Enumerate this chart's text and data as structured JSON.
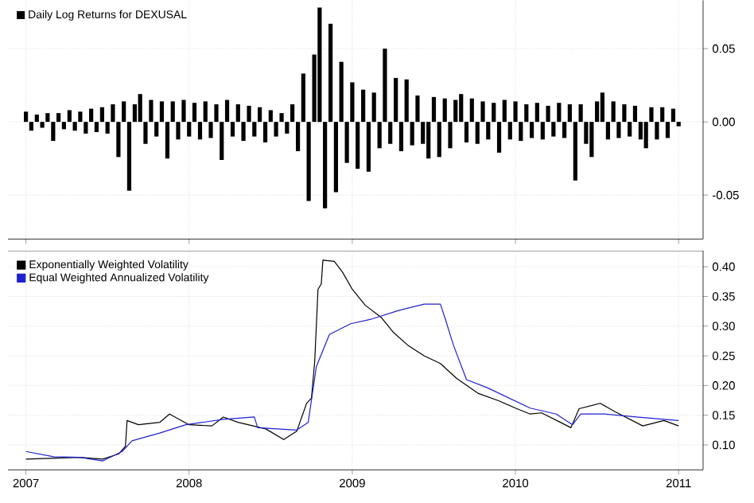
{
  "chart_data": [
    {
      "type": "bar",
      "xlim": [
        2006.89,
        2011.15
      ],
      "ylim": [
        -0.08,
        0.083
      ],
      "xticks": [
        2007,
        2008,
        2009,
        2010,
        2011
      ],
      "yticks": [
        {
          "value": -0.05,
          "label": "-0.05"
        },
        {
          "value": 0,
          "label": "0.00"
        },
        {
          "value": 0.05,
          "label": "0.05"
        }
      ],
      "tick_labels": "y",
      "grid": true,
      "legend": "top left",
      "series": [
        {
          "name": "Daily Log Returns for DEXUSAL",
          "color": "#000000",
          "x": [
            2007.0,
            2007.033,
            2007.067,
            2007.1,
            2007.133,
            2007.167,
            2007.2,
            2007.233,
            2007.267,
            2007.3,
            2007.333,
            2007.367,
            2007.4,
            2007.433,
            2007.467,
            2007.5,
            2007.533,
            2007.567,
            2007.6,
            2007.633,
            2007.667,
            2007.7,
            2007.733,
            2007.767,
            2007.8,
            2007.833,
            2007.867,
            2007.9,
            2007.933,
            2007.967,
            2008.0,
            2008.033,
            2008.067,
            2008.1,
            2008.133,
            2008.167,
            2008.2,
            2008.233,
            2008.267,
            2008.3,
            2008.333,
            2008.367,
            2008.4,
            2008.433,
            2008.467,
            2008.5,
            2008.533,
            2008.567,
            2008.6,
            2008.633,
            2008.667,
            2008.7,
            2008.733,
            2008.767,
            2008.8,
            2008.833,
            2008.867,
            2008.9,
            2008.933,
            2008.967,
            2009.0,
            2009.033,
            2009.067,
            2009.1,
            2009.133,
            2009.167,
            2009.2,
            2009.233,
            2009.267,
            2009.3,
            2009.333,
            2009.367,
            2009.4,
            2009.433,
            2009.467,
            2009.5,
            2009.533,
            2009.567,
            2009.6,
            2009.633,
            2009.667,
            2009.7,
            2009.733,
            2009.767,
            2009.8,
            2009.833,
            2009.867,
            2009.9,
            2009.933,
            2009.967,
            2010.0,
            2010.033,
            2010.067,
            2010.1,
            2010.133,
            2010.167,
            2010.2,
            2010.233,
            2010.267,
            2010.3,
            2010.333,
            2010.367,
            2010.4,
            2010.433,
            2010.467,
            2010.5,
            2010.533,
            2010.567,
            2010.6,
            2010.633,
            2010.667,
            2010.7,
            2010.733,
            2010.767,
            2010.8,
            2010.833,
            2010.867,
            2010.9,
            2010.933,
            2010.967,
            2011.0
          ],
          "values": [
            0.007,
            -0.006,
            0.005,
            -0.004,
            0.006,
            -0.013,
            0.006,
            -0.005,
            0.008,
            -0.006,
            0.007,
            -0.008,
            0.009,
            -0.007,
            0.01,
            -0.008,
            0.012,
            -0.024,
            0.014,
            -0.047,
            0.012,
            0.019,
            -0.015,
            0.015,
            -0.01,
            0.014,
            -0.025,
            0.014,
            -0.012,
            0.015,
            -0.01,
            0.013,
            -0.012,
            0.014,
            -0.011,
            0.012,
            -0.026,
            0.015,
            -0.01,
            0.012,
            -0.013,
            0.011,
            -0.01,
            0.01,
            -0.014,
            0.008,
            -0.01,
            0.006,
            -0.008,
            0.012,
            -0.02,
            0.033,
            -0.054,
            0.046,
            0.078,
            -0.059,
            0.067,
            -0.048,
            0.041,
            -0.028,
            0.027,
            -0.032,
            0.022,
            -0.034,
            0.02,
            -0.018,
            0.05,
            -0.015,
            0.03,
            -0.02,
            0.029,
            -0.016,
            0.018,
            -0.015,
            -0.025,
            0.017,
            -0.024,
            0.016,
            -0.018,
            0.015,
            0.019,
            -0.014,
            0.016,
            -0.015,
            0.014,
            -0.012,
            0.013,
            -0.021,
            0.015,
            -0.012,
            0.014,
            -0.013,
            0.012,
            -0.011,
            0.013,
            -0.012,
            0.011,
            -0.01,
            0.013,
            -0.011,
            0.012,
            -0.04,
            0.012,
            -0.015,
            -0.024,
            0.014,
            0.02,
            -0.012,
            0.014,
            -0.011,
            0.012,
            -0.01,
            0.011,
            -0.012,
            -0.018,
            0.01,
            -0.012,
            0.01,
            -0.011,
            0.009,
            -0.003
          ]
        }
      ]
    },
    {
      "type": "line",
      "xlim": [
        2006.89,
        2011.15
      ],
      "ylim": [
        0.058,
        0.427
      ],
      "xticks": [
        2007,
        2008,
        2009,
        2010,
        2011
      ],
      "yticks": [
        {
          "value": 0.1,
          "label": "0.10"
        },
        {
          "value": 0.15,
          "label": "0.15"
        },
        {
          "value": 0.2,
          "label": "0.20"
        },
        {
          "value": 0.25,
          "label": "0.25"
        },
        {
          "value": 0.3,
          "label": "0.30"
        },
        {
          "value": 0.35,
          "label": "0.35"
        },
        {
          "value": 0.4,
          "label": "0.40"
        }
      ],
      "grid": true,
      "legend": "top left",
      "series": [
        {
          "name": "Exponentially Weighted Volatility",
          "color": "#000000",
          "x": [
            2007.0,
            2007.33,
            2007.47,
            2007.57,
            2007.61,
            2007.62,
            2007.69,
            2007.82,
            2007.88,
            2008.0,
            2008.14,
            2008.21,
            2008.3,
            2008.47,
            2008.58,
            2008.66,
            2008.72,
            2008.75,
            2008.77,
            2008.79,
            2008.81,
            2008.82,
            2008.89,
            2008.94,
            2009.0,
            2009.08,
            2009.18,
            2009.25,
            2009.34,
            2009.44,
            2009.54,
            2009.64,
            2009.77,
            2009.9,
            2010.0,
            2010.09,
            2010.16,
            2010.29,
            2010.34,
            2010.39,
            2010.52,
            2010.61,
            2010.78,
            2010.91,
            2011.0
          ],
          "values": [
            0.076,
            0.079,
            0.076,
            0.085,
            0.098,
            0.141,
            0.134,
            0.138,
            0.152,
            0.134,
            0.132,
            0.147,
            0.138,
            0.127,
            0.109,
            0.123,
            0.17,
            0.179,
            0.241,
            0.362,
            0.371,
            0.411,
            0.409,
            0.391,
            0.362,
            0.335,
            0.314,
            0.29,
            0.268,
            0.25,
            0.237,
            0.212,
            0.187,
            0.174,
            0.162,
            0.152,
            0.154,
            0.136,
            0.129,
            0.161,
            0.17,
            0.156,
            0.132,
            0.141,
            0.132
          ]
        },
        {
          "name": "Equal Weighted Annualized Volatility",
          "color": "#2020d0",
          "x": [
            2007.0,
            2007.17,
            2007.33,
            2007.47,
            2007.59,
            2007.65,
            2007.82,
            2007.98,
            2008.21,
            2008.4,
            2008.42,
            2008.66,
            2008.73,
            2008.78,
            2008.86,
            2008.99,
            2009.12,
            2009.28,
            2009.44,
            2009.54,
            2009.57,
            2009.62,
            2009.7,
            2009.83,
            2009.96,
            2010.09,
            2010.25,
            2010.35,
            2010.4,
            2010.55,
            2010.74,
            2010.91,
            2011.0
          ],
          "values": [
            0.089,
            0.08,
            0.079,
            0.073,
            0.089,
            0.107,
            0.12,
            0.134,
            0.143,
            0.147,
            0.129,
            0.125,
            0.138,
            0.232,
            0.286,
            0.304,
            0.312,
            0.326,
            0.337,
            0.337,
            0.312,
            0.268,
            0.21,
            0.196,
            0.179,
            0.162,
            0.152,
            0.134,
            0.152,
            0.152,
            0.147,
            0.143,
            0.141
          ]
        }
      ]
    }
  ]
}
